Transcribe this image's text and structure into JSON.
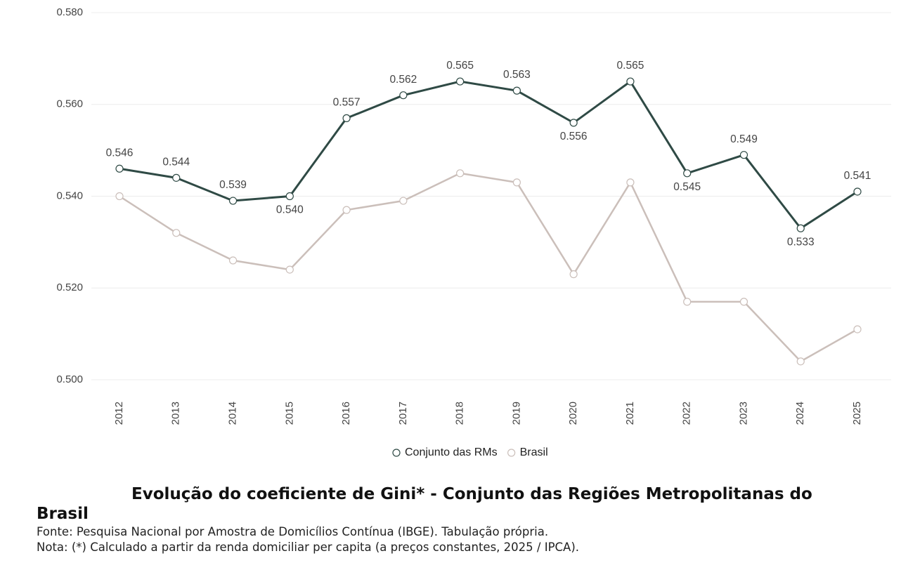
{
  "chart_data": {
    "type": "line",
    "title": "Evolução do coeficiente de Gini* - Conjunto das Regiões Metropolitanas do Brasil",
    "source": "Fonte: Pesquisa Nacional por Amostra de Domicílios Contínua (IBGE). Tabulação própria.",
    "note": "Nota: (*) Calculado a partir da renda domiciliar per capita (a preços constantes, 2025 / IPCA).",
    "categories": [
      "2012",
      "2013",
      "2014",
      "2015",
      "2016",
      "2017",
      "2018",
      "2019",
      "2020",
      "2021",
      "2022",
      "2023",
      "2024",
      "2025"
    ],
    "series": [
      {
        "name": "Conjunto das RMs",
        "color": "#2f4a45",
        "values": [
          0.546,
          0.544,
          0.539,
          0.54,
          0.557,
          0.562,
          0.565,
          0.563,
          0.556,
          0.565,
          0.545,
          0.549,
          0.533,
          0.541
        ],
        "value_labels": [
          "0.546",
          "0.544",
          "0.539",
          "0.540",
          "0.557",
          "0.562",
          "0.565",
          "0.563",
          "0.556",
          "0.565",
          "0.545",
          "0.549",
          "0.533",
          "0.541"
        ]
      },
      {
        "name": "Brasil",
        "color": "#cbbfba",
        "values": [
          0.54,
          0.532,
          0.526,
          0.524,
          0.537,
          0.539,
          0.545,
          0.543,
          0.523,
          0.543,
          0.517,
          0.517,
          0.504,
          0.511
        ]
      }
    ],
    "ylim": [
      0.5,
      0.58
    ],
    "yticks": [
      {
        "value": 0.5,
        "label": "0.500"
      },
      {
        "value": 0.52,
        "label": "0.520"
      },
      {
        "value": 0.54,
        "label": "0.540"
      },
      {
        "value": 0.56,
        "label": "0.560"
      },
      {
        "value": 0.58,
        "label": "0.580"
      }
    ],
    "grid": true
  }
}
